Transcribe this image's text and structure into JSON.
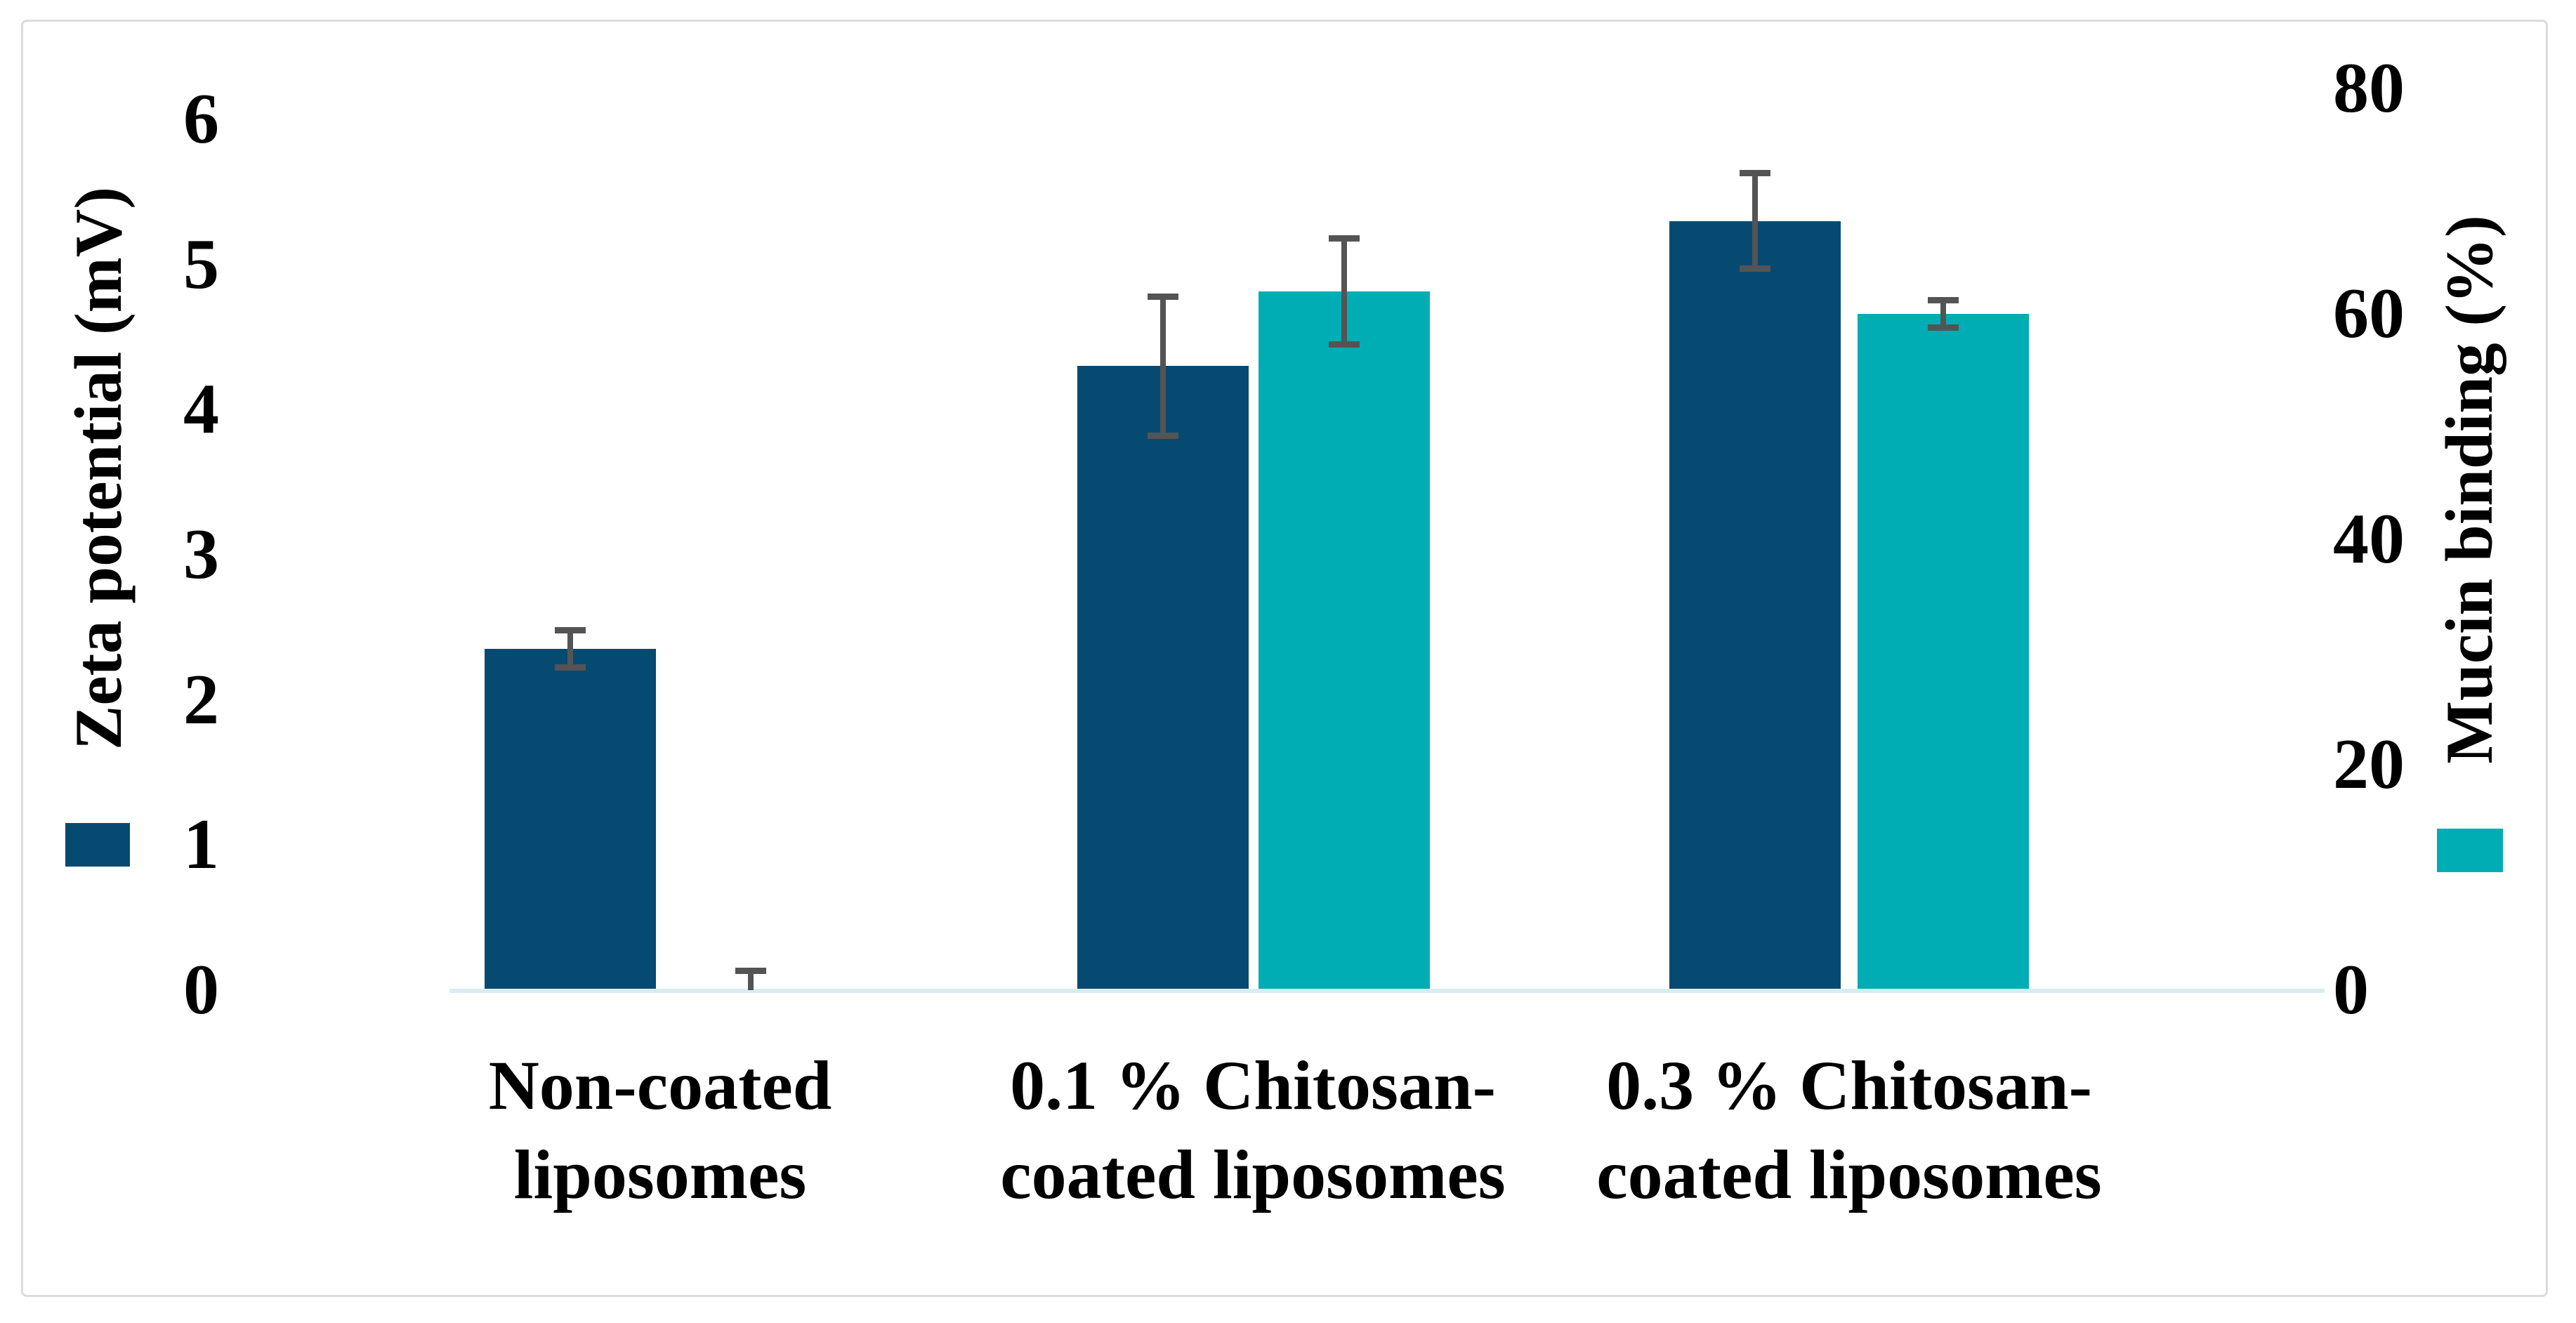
{
  "figure": {
    "background_color": "#ffffff",
    "border_color": "#dcdcdc"
  },
  "chart_data": {
    "type": "bar",
    "grouping": "grouped-dual-axis",
    "title": "",
    "categories": [
      "Non-coated liposomes",
      "0.1 % Chitosan-coated liposomes",
      "0.3 % Chitosan-coated liposomes"
    ],
    "category_label_lines": [
      [
        "Non-coated",
        "liposomes"
      ],
      [
        "0.1 % Chitosan-",
        "coated liposomes"
      ],
      [
        "0.3 % Chitosan-",
        "coated liposomes"
      ]
    ],
    "series": [
      {
        "name": "Zeta potential (mV)",
        "axis": "left",
        "color": "#064a72",
        "values": [
          2.35,
          4.3,
          5.3
        ],
        "errors": [
          0.15,
          0.5,
          0.35
        ]
      },
      {
        "name": "Mucin binding (%)",
        "axis": "right",
        "color": "#00adb4",
        "values": [
          0,
          62,
          60
        ],
        "errors": [
          2,
          5,
          1.5
        ]
      }
    ],
    "left_axis": {
      "title": "Zeta potential (mV)",
      "min": 0,
      "max": 6,
      "step": 1,
      "tick_labels": [
        "6",
        "5",
        "4",
        "3",
        "2",
        "1",
        "0"
      ]
    },
    "right_axis": {
      "title": "Mucin binding (%)",
      "min": 0,
      "max": 80,
      "step": 20,
      "tick_labels": [
        "80",
        "60",
        "40",
        "20",
        "0"
      ]
    },
    "grid": false,
    "legend_position": "swatches-under-axis-titles",
    "error_bar_color": "#545454",
    "axis_line_color": "#d8edf2"
  }
}
